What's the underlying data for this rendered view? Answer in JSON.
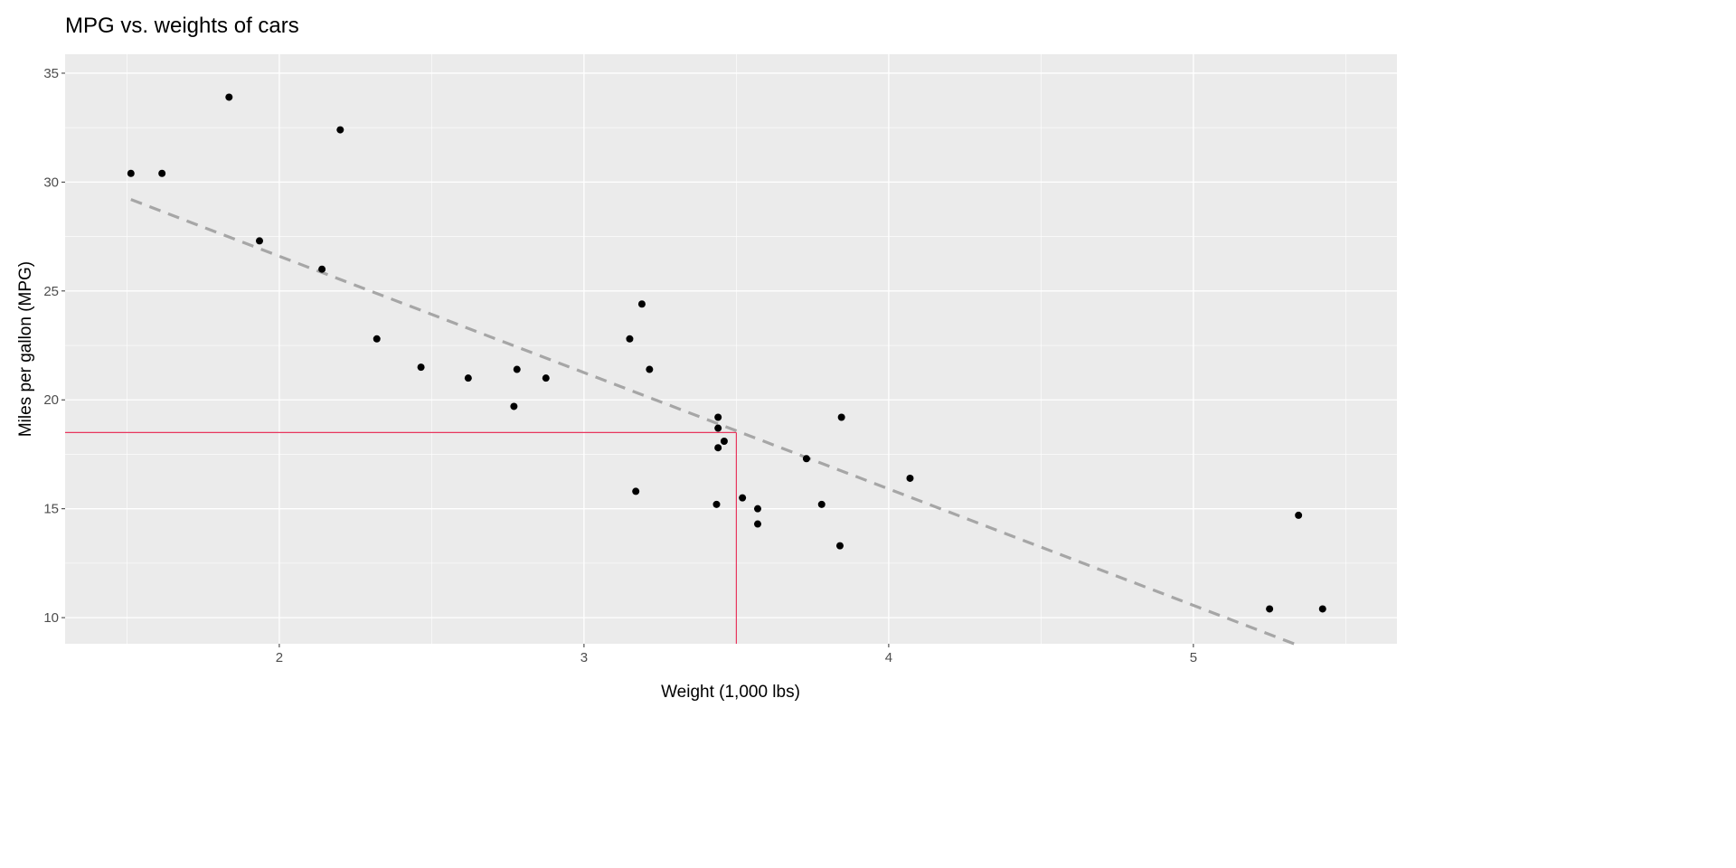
{
  "chart_data": {
    "type": "scatter",
    "title": "MPG vs. weights of cars",
    "xlabel": "Weight (1,000 lbs)",
    "ylabel": "Miles per gallon (MPG)",
    "xlim": [
      1.297,
      5.668
    ],
    "ylim": [
      8.8,
      35.87
    ],
    "xticks": [
      2,
      3,
      4,
      5
    ],
    "yticks": [
      10,
      15,
      20,
      25,
      30,
      35
    ],
    "xtick_labels": [
      "2",
      "3",
      "4",
      "5"
    ],
    "ytick_labels": [
      "10",
      "15",
      "20",
      "25",
      "30",
      "35"
    ],
    "grid": true,
    "points": {
      "x": [
        2.62,
        2.875,
        2.32,
        3.215,
        3.44,
        3.46,
        3.57,
        3.19,
        3.15,
        3.44,
        3.44,
        4.07,
        3.73,
        3.78,
        5.25,
        5.424,
        5.345,
        2.2,
        1.615,
        1.835,
        2.465,
        3.52,
        3.435,
        3.84,
        3.845,
        1.935,
        2.14,
        1.513,
        3.17,
        2.77,
        3.57,
        2.78
      ],
      "y": [
        21.0,
        21.0,
        22.8,
        21.4,
        18.7,
        18.1,
        14.3,
        24.4,
        22.8,
        19.2,
        17.8,
        16.4,
        17.3,
        15.2,
        10.4,
        10.4,
        14.7,
        32.4,
        30.4,
        33.9,
        21.5,
        15.5,
        15.2,
        13.3,
        19.2,
        27.3,
        26.0,
        30.4,
        15.8,
        19.7,
        15.0,
        21.4
      ]
    },
    "fit_line": {
      "type": "linear",
      "intercept": 37.285,
      "slope": -5.344,
      "x_range": [
        1.513,
        5.424
      ],
      "style": "dashed",
      "color": "#a6a6a6"
    },
    "reference": {
      "x": 3.5,
      "y": 18.5,
      "color": "#e8365d"
    },
    "colors": {
      "panel": "#ebebeb",
      "grid": "#ffffff",
      "points": "#000000"
    }
  }
}
